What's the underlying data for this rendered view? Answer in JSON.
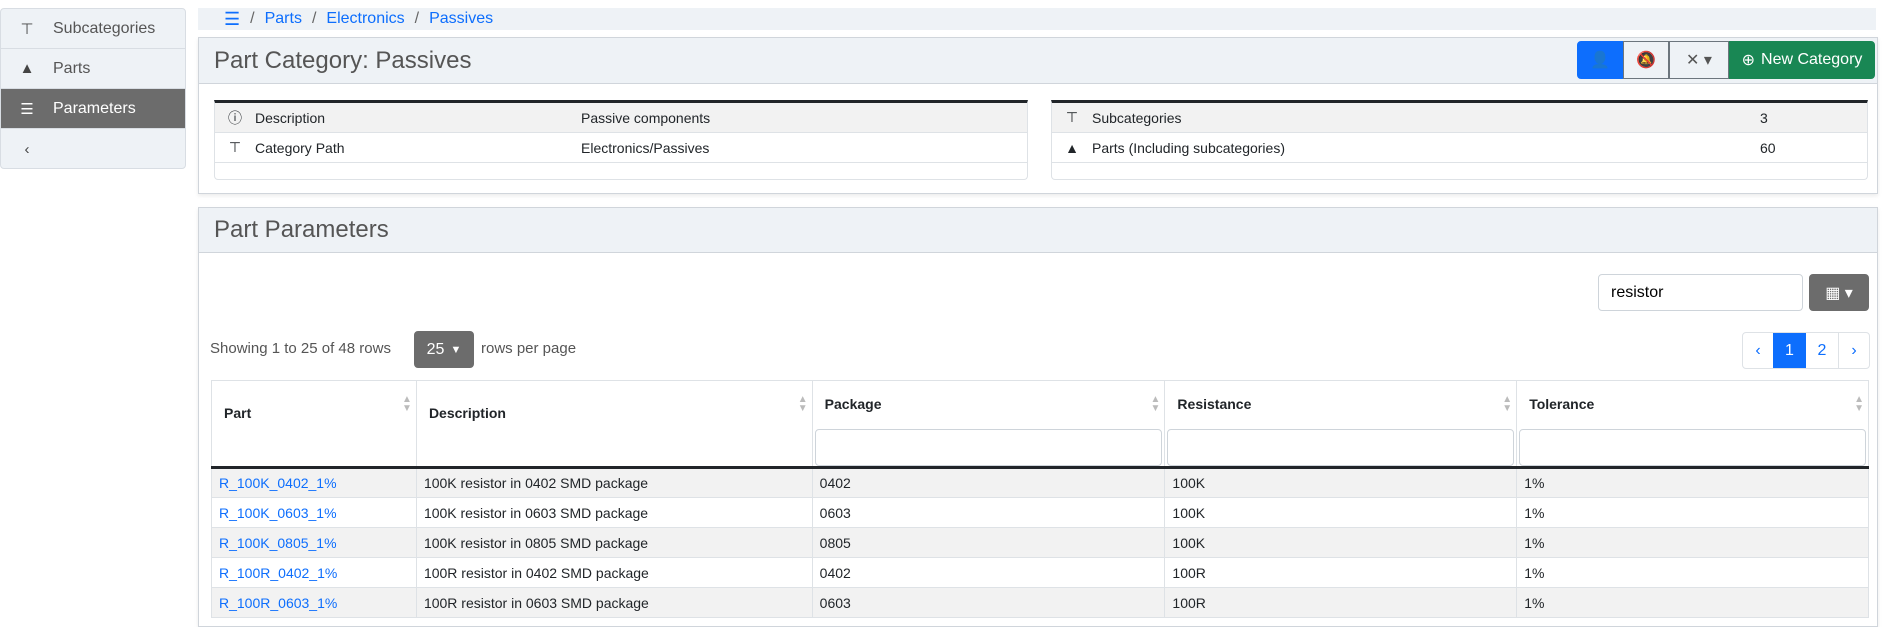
{
  "sidebar": {
    "items": [
      {
        "label": "Subcategories",
        "icon": "sitemap-icon",
        "active": false
      },
      {
        "label": "Parts",
        "icon": "shapes-icon",
        "active": false
      },
      {
        "label": "Parameters",
        "icon": "tasks-icon",
        "active": true
      }
    ],
    "collapse_icon": "chevron-left-icon"
  },
  "breadcrumb": {
    "items": [
      "Parts",
      "Electronics",
      "Passives"
    ]
  },
  "category": {
    "title": "Part Category: Passives",
    "new_category_label": "New Category",
    "details": [
      {
        "label": "Description",
        "value": "Passive components"
      },
      {
        "label": "Category Path",
        "value": "Electronics/Passives"
      }
    ],
    "stats": [
      {
        "label": "Subcategories",
        "value": "3"
      },
      {
        "label": "Parts (Including subcategories)",
        "value": "60"
      }
    ]
  },
  "parameters": {
    "title": "Part Parameters",
    "search_value": "resistor",
    "showing": "Showing 1 to 25 of 48 rows",
    "page_size": "25",
    "rows_per_page": "rows per page",
    "pages": [
      "‹",
      "1",
      "2",
      "›"
    ],
    "current_page": "1",
    "columns": [
      "Part",
      "Description",
      "Package",
      "Resistance",
      "Tolerance"
    ],
    "rows": [
      [
        "R_100K_0402_1%",
        "100K resistor in 0402 SMD package",
        "0402",
        "100K",
        "1%"
      ],
      [
        "R_100K_0603_1%",
        "100K resistor in 0603 SMD package",
        "0603",
        "100K",
        "1%"
      ],
      [
        "R_100K_0805_1%",
        "100K resistor in 0805 SMD package",
        "0805",
        "100K",
        "1%"
      ],
      [
        "R_100R_0402_1%",
        "100R resistor in 0402 SMD package",
        "0402",
        "100R",
        "1%"
      ],
      [
        "R_100R_0603_1%",
        "100R resistor in 0603 SMD package",
        "0603",
        "100R",
        "1%"
      ]
    ]
  },
  "colors": {
    "primary": "#0d6efd",
    "success": "#198754",
    "secondary": "#6c6c6c"
  }
}
